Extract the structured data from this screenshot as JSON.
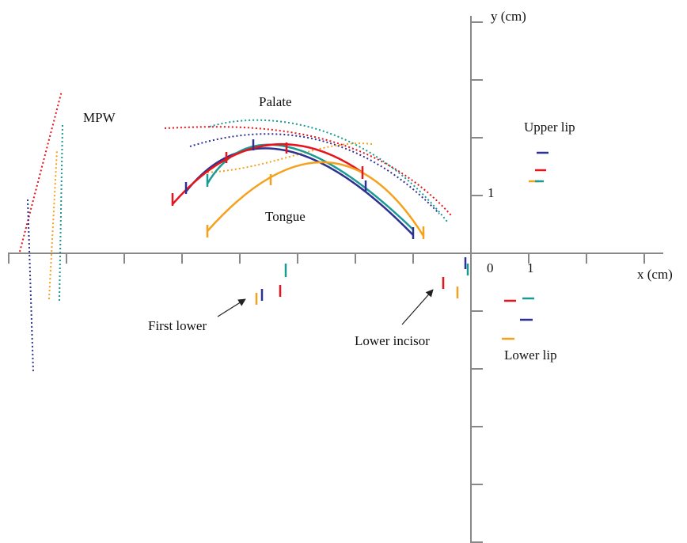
{
  "axes": {
    "y_label": "y (cm)",
    "x_label": "x (cm)",
    "origin": "0",
    "x_one": "1",
    "y_one": "1"
  },
  "labels": {
    "mpw": "MPW",
    "palate": "Palate",
    "upper_lip": "Upper lip",
    "tongue": "Tongue",
    "first_lower": "First lower",
    "lower_incisor": "Lower incisor",
    "lower_lip": "Lower lip"
  }
}
